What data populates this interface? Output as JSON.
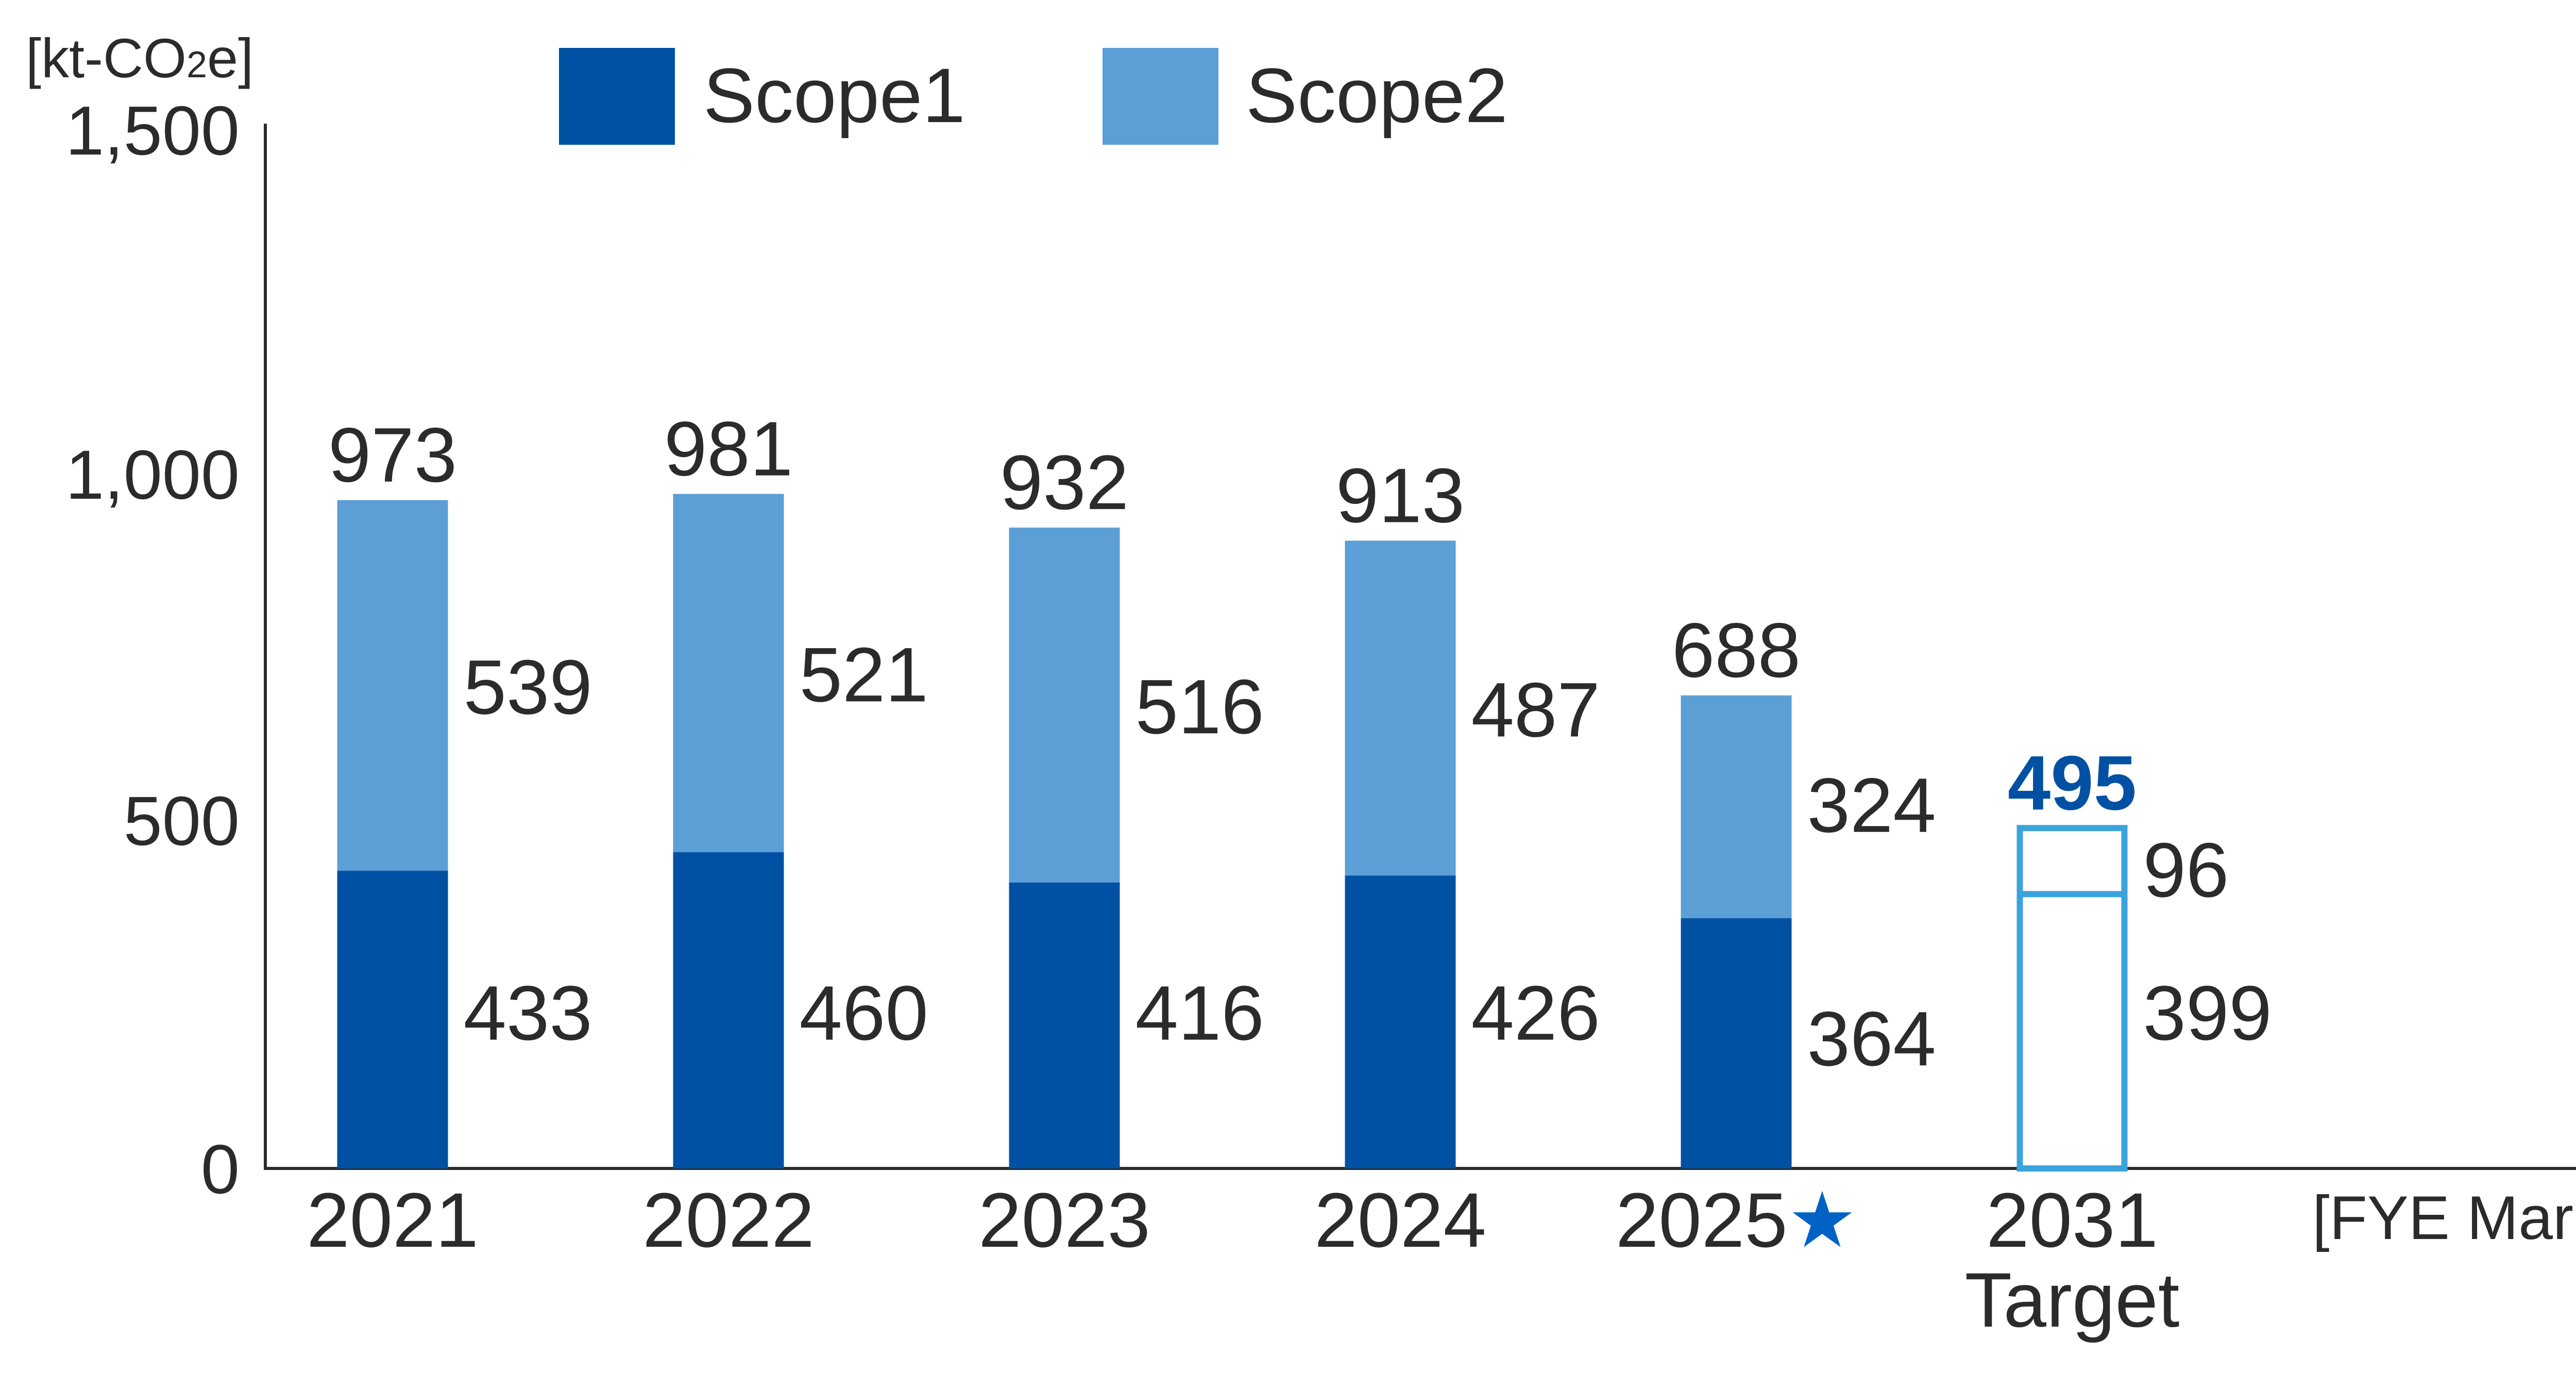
{
  "chart_data": {
    "type": "bar",
    "stacked": true,
    "unit_label": "[kt-CO2e]",
    "unit_prefix": "[kt-CO",
    "unit_subscript": "2",
    "unit_suffix": "e]",
    "xlabel": "[FYE March]",
    "ylabel": "",
    "ylim": [
      0,
      1500
    ],
    "yticks": [
      "0",
      "500",
      "1,000",
      "1,500"
    ],
    "ytick_values": [
      0,
      500,
      1000,
      1500
    ],
    "grid": false,
    "legend_position": "top",
    "categories": [
      "2021",
      "2022",
      "2023",
      "2024",
      "2025",
      "2031"
    ],
    "category_labels": [
      "2021",
      "2022",
      "2023",
      "2024",
      "2025★",
      "2031"
    ],
    "category_star": "★",
    "target_label": "Target",
    "series": [
      {
        "name": "Scope1",
        "color": "#0051a3",
        "values": [
          433,
          460,
          416,
          426,
          364,
          399
        ]
      },
      {
        "name": "Scope2",
        "color": "#5b9fd6",
        "values": [
          539,
          521,
          516,
          487,
          324,
          96
        ]
      }
    ],
    "totals": [
      973,
      981,
      932,
      913,
      688,
      495
    ],
    "target_index": 5,
    "target_color": "#3aa3dc",
    "target_total_color": "#0051a3",
    "star_color": "#0062c4"
  }
}
